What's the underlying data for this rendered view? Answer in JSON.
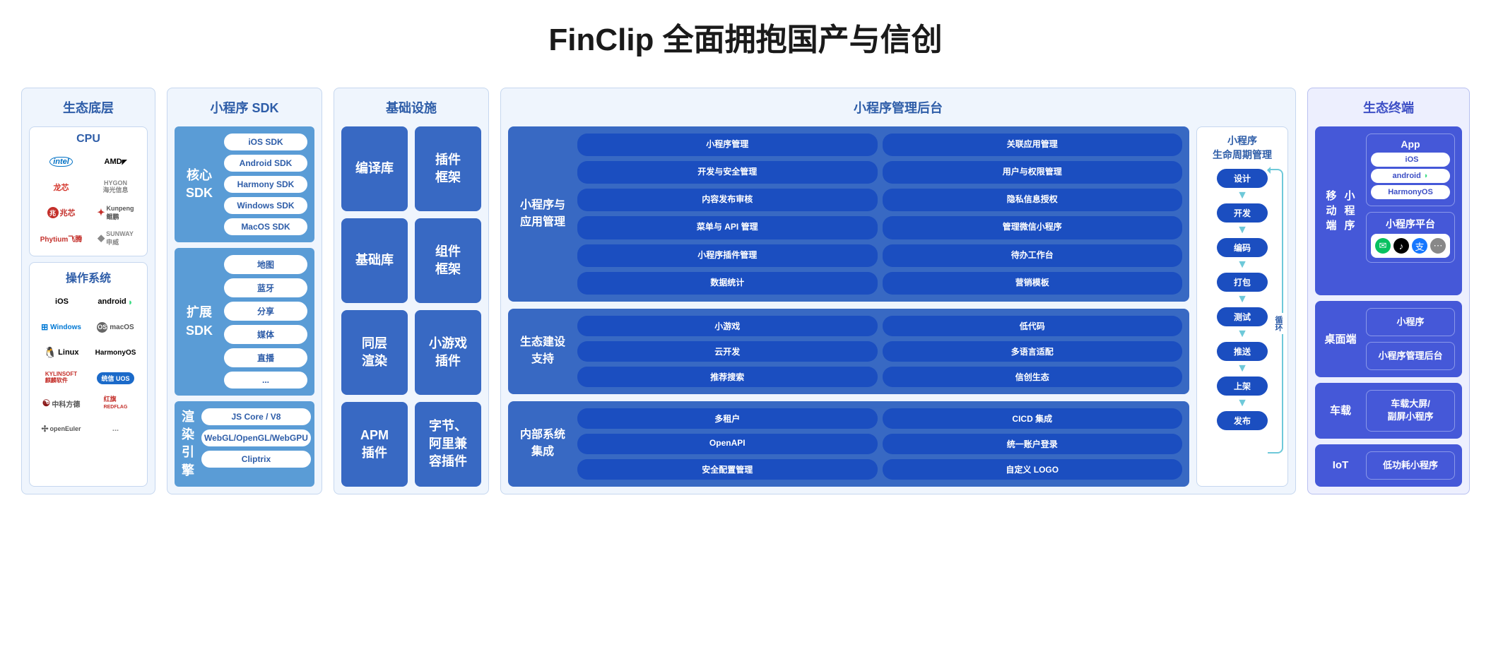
{
  "title": "FinClip 全面拥抱国产与信创",
  "colors": {
    "light_panel_bg": "#eff5fd",
    "light_panel_border": "#c6d7ef",
    "light_panel_header": "#2e5da8",
    "muted_blue": "#5a9cd6",
    "solid_blue": "#3869c3",
    "dark_pill": "#1b4ec0",
    "indigo_panel_bg": "#edeffe",
    "indigo_panel_border": "#b8c0f0",
    "indigo_block": "#4558d8",
    "arrow": "#6ec9d9"
  },
  "col1": {
    "header": "生态底层",
    "cpu": {
      "header": "CPU",
      "logos": [
        "intel",
        "AMD",
        "龙芯",
        "HYGON 海光",
        "兆芯",
        "Kunpeng 鲲鹏",
        "Phytium 飞腾",
        "SUNWAY 申威"
      ]
    },
    "os": {
      "header": "操作系统",
      "logos": [
        "iOS",
        "android",
        "Windows",
        "macOS",
        "Linux",
        "HarmonyOS",
        "KYLINSOFT 麒麟软件",
        "统信 UOS",
        "中科方德",
        "红旗 REDFLAG",
        "openEuler",
        "..."
      ]
    }
  },
  "col2": {
    "header": "小程序 SDK",
    "core": {
      "label": "核心\nSDK",
      "items": [
        "iOS SDK",
        "Android SDK",
        "Harmony SDK",
        "Windows SDK",
        "MacOS SDK"
      ]
    },
    "ext": {
      "label": "扩展\nSDK",
      "items": [
        "地图",
        "蓝牙",
        "分享",
        "媒体",
        "直播",
        "..."
      ]
    },
    "render": {
      "label": "渲染\n引擎",
      "items": [
        "JS Core / V8",
        "WebGL/OpenGL/WebGPU",
        "Cliptrix"
      ]
    }
  },
  "col3": {
    "header": "基础设施",
    "cells": [
      "编译库",
      "插件\n框架",
      "基础库",
      "组件\n框架",
      "同层\n渲染",
      "小游戏\n插件",
      "APM\n插件",
      "字节、\n阿里兼\n容插件"
    ]
  },
  "col4": {
    "header": "小程序管理后台",
    "sections": [
      {
        "label": "小程序与\n应用管理",
        "items": [
          "小程序管理",
          "关联应用管理",
          "开发与安全管理",
          "用户与权限管理",
          "内容发布审核",
          "隐私信息授权",
          "菜单与 API 管理",
          "管理微信小程序",
          "小程序插件管理",
          "待办工作台",
          "数据统计",
          "营销模板"
        ]
      },
      {
        "label": "生态建设\n支持",
        "items": [
          "小游戏",
          "低代码",
          "云开发",
          "多语言适配",
          "推荐搜索",
          "信创生态"
        ]
      },
      {
        "label": "内部系统\n集成",
        "items": [
          "多租户",
          "CICD 集成",
          "OpenAPI",
          "统一账户登录",
          "安全配置管理",
          "自定义 LOGO"
        ]
      }
    ],
    "lifecycle": {
      "header": "小程序\n生命周期管理",
      "steps": [
        "设计",
        "开发",
        "编码",
        "打包",
        "测试",
        "推送",
        "上架",
        "发布"
      ],
      "loop_label": "循\n环"
    }
  },
  "col5": {
    "header": "生态终端",
    "mobile": {
      "label": "移动端\n小程序",
      "app": {
        "header": "App",
        "items": [
          "iOS",
          "android",
          "HarmonyOS"
        ]
      },
      "platform": {
        "header": "小程序平台",
        "icons": [
          "wechat",
          "douyin",
          "alipay",
          "more"
        ]
      }
    },
    "desktop": {
      "label": "桌面端",
      "items": [
        "小程序",
        "小程序管理后台"
      ]
    },
    "car": {
      "label": "车载",
      "items": [
        "车载大屏/\n副屏小程序"
      ]
    },
    "iot": {
      "label": "IoT",
      "items": [
        "低功耗小程序"
      ]
    }
  }
}
